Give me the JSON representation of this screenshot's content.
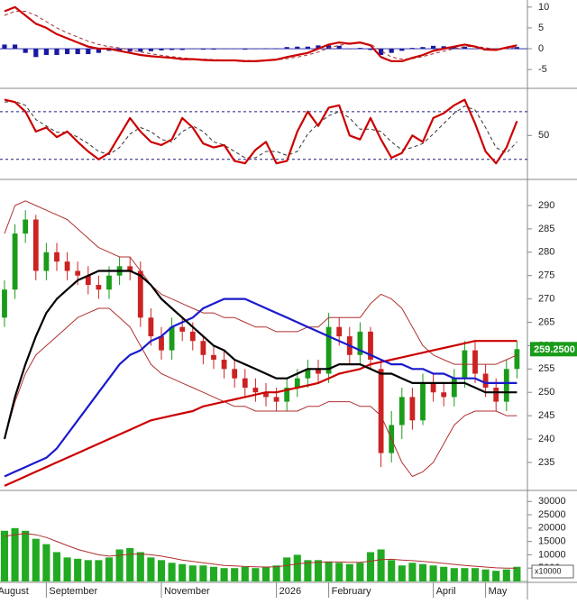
{
  "chart_data": [
    {
      "type": "line",
      "xlim": [
        -0.43,
        50
      ],
      "ylim": [
        -9.3,
        11.7
      ],
      "yticks": [
        10,
        5,
        0,
        -5
      ],
      "series": [
        {
          "style": "bar",
          "color": "#1a1aa0",
          "values": [
            1,
            1,
            -1,
            -2,
            -1.5,
            -1.5,
            -1.3,
            -1.3,
            -1.3,
            -1,
            -0.5,
            -0.7,
            -0.7,
            -0.7,
            -0.6,
            -0.4,
            -0.3,
            -0.3,
            -0.1,
            -0.2,
            -0.2,
            -0.1,
            0,
            -0.2,
            -0.1,
            0.1,
            0.1,
            0.4,
            0.5,
            0.5,
            0.8,
            0.8,
            0.7,
            0,
            0.2,
            -0.3,
            -1.5,
            -1,
            -0.5,
            0.2,
            0.4,
            0.7,
            0.6,
            0.5,
            0.5,
            -0.1,
            -0.4,
            -0.2,
            0.3,
            0.4
          ]
        },
        {
          "style": "dashed",
          "color": "#a03030",
          "values": [
            8,
            9,
            9,
            8,
            6.5,
            5,
            3.8,
            2.8,
            1.8,
            1,
            0.5,
            0.2,
            -0.3,
            -0.8,
            -1.2,
            -1.6,
            -1.9,
            -2.2,
            -2.4,
            -2.5,
            -2.6,
            -2.7,
            -2.8,
            -2.8,
            -2.9,
            -2.9,
            -2.7,
            -2.4,
            -2,
            -1.5,
            -0.8,
            0.2,
            0.8,
            1.2,
            1.3,
            1.1,
            -0.5,
            -2,
            -2.5,
            -2.4,
            -1.9,
            -1.2,
            -0.6,
            0,
            0.5,
            0.6,
            0.2,
            -0.1,
            0,
            0.4
          ]
        },
        {
          "style": "thick",
          "color": "#cc0000",
          "values": [
            9,
            10,
            8,
            6,
            5,
            3.5,
            2.5,
            1.5,
            0.5,
            0,
            0,
            -0.5,
            -1,
            -1.5,
            -1.8,
            -2,
            -2.2,
            -2.5,
            -2.5,
            -2.7,
            -2.8,
            -2.8,
            -2.8,
            -3,
            -3,
            -2.8,
            -2.6,
            -2,
            -1.5,
            -1,
            0,
            1,
            1.5,
            1.2,
            1.5,
            0.8,
            -2,
            -3,
            -3,
            -2.2,
            -1.5,
            -0.5,
            0,
            0.5,
            1,
            0.5,
            -0.2,
            -0.3,
            0.3,
            0.8
          ]
        }
      ]
    },
    {
      "type": "line",
      "xlim": [
        -0.43,
        50
      ],
      "ylim": [
        -4,
        107
      ],
      "yticks": [
        50
      ],
      "levels": [
        80,
        20
      ],
      "series": [
        {
          "style": "dashed",
          "color": "#333333",
          "values": [
            92,
            93,
            88,
            70,
            62,
            54,
            54,
            48,
            40,
            30,
            26,
            35,
            52,
            60,
            55,
            45,
            42,
            55,
            62,
            55,
            42,
            38,
            30,
            22,
            22,
            30,
            30,
            25,
            30,
            52,
            65,
            75,
            80,
            72,
            58,
            58,
            55,
            42,
            32,
            35,
            40,
            52,
            65,
            78,
            87,
            82,
            60,
            35,
            28,
            42
          ]
        },
        {
          "style": "thick",
          "color": "#cc0000",
          "values": [
            95,
            92,
            80,
            55,
            60,
            48,
            55,
            42,
            30,
            20,
            28,
            50,
            72,
            55,
            42,
            38,
            45,
            72,
            60,
            40,
            35,
            38,
            18,
            15,
            32,
            42,
            15,
            18,
            55,
            80,
            62,
            85,
            88,
            50,
            45,
            72,
            45,
            22,
            28,
            50,
            42,
            72,
            78,
            88,
            95,
            65,
            30,
            15,
            35,
            68
          ]
        }
      ]
    },
    {
      "type": "candlestick",
      "xlim": [
        -0.43,
        50
      ],
      "ylim": [
        229.2,
        295.4
      ],
      "yticks": [
        235,
        240,
        245,
        250,
        255,
        260,
        265,
        270,
        275,
        280,
        285,
        290
      ],
      "up_color": "#1a9c1a",
      "down_color": "#cc2222",
      "open": [
        266,
        272,
        284,
        287,
        276,
        280,
        278,
        276,
        275,
        273,
        272,
        275,
        277,
        276,
        266,
        262,
        259,
        264,
        263,
        261,
        258,
        257,
        255,
        253,
        251,
        250,
        249,
        248,
        251,
        253,
        255,
        254,
        264,
        262,
        258,
        263,
        255,
        237,
        243,
        249,
        244,
        252,
        250,
        249,
        253,
        259,
        254,
        251,
        248,
        255
      ],
      "high": [
        274,
        286,
        289,
        288,
        282,
        282,
        280,
        278,
        277,
        275,
        277,
        279,
        279,
        278,
        268,
        264,
        266,
        266,
        265,
        262,
        260,
        259,
        257,
        255,
        253,
        252,
        251,
        253,
        255,
        257,
        257,
        267,
        266,
        264,
        265,
        264,
        257,
        246,
        251,
        251,
        254,
        254,
        252,
        255,
        261,
        261,
        256,
        253,
        257,
        261
      ],
      "low": [
        264,
        270,
        282,
        274,
        274,
        276,
        274,
        273,
        271,
        270,
        270,
        273,
        274,
        264,
        260,
        257,
        257,
        261,
        259,
        256,
        255,
        253,
        251,
        249,
        248,
        247,
        246,
        246,
        249,
        251,
        252,
        252,
        260,
        256,
        256,
        255,
        234,
        235,
        240,
        242,
        243,
        248,
        247,
        247,
        251,
        252,
        249,
        246,
        246,
        253
      ],
      "close": [
        272,
        284,
        287,
        276,
        280,
        278,
        276,
        275,
        273,
        272,
        275,
        277,
        276,
        266,
        262,
        259,
        264,
        263,
        261,
        258,
        257,
        255,
        253,
        251,
        250,
        249,
        248,
        251,
        253,
        255,
        254,
        264,
        262,
        258,
        263,
        257,
        237,
        243,
        249,
        244,
        252,
        250,
        249,
        253,
        259,
        254,
        251,
        248,
        255,
        259.25
      ],
      "last_price": {
        "value": 259.25,
        "label": "259.2500"
      },
      "last_color": "#1a9c1a",
      "series": [
        {
          "style": "thin",
          "color": "#b03030",
          "values": [
            284,
            290,
            291,
            290,
            289,
            288,
            287,
            285,
            283,
            281,
            280,
            279,
            279,
            276,
            273,
            271,
            270,
            269,
            268,
            267,
            267,
            266,
            266,
            265,
            264,
            264,
            263,
            263,
            263,
            264,
            264,
            266,
            266,
            266,
            266,
            269,
            271,
            270,
            268,
            264,
            260,
            258,
            257,
            256,
            256,
            256,
            256,
            256,
            257,
            258
          ]
        },
        {
          "style": "thin",
          "color": "#b03030",
          "values": [
            240,
            248,
            254,
            258,
            260,
            262,
            264,
            266,
            267,
            268,
            268,
            266,
            264,
            260,
            256,
            254,
            253,
            252,
            251,
            250,
            249,
            248,
            247,
            247,
            246,
            246,
            246,
            246,
            246,
            247,
            247,
            248,
            248,
            248,
            247,
            247,
            245,
            240,
            235,
            232,
            233,
            235,
            239,
            243,
            245,
            246,
            246,
            246,
            245,
            245
          ]
        },
        {
          "style": "thick",
          "color": "#cc0000",
          "values": [
            230,
            231,
            232,
            233,
            234,
            235,
            236,
            237,
            238,
            239,
            240,
            241,
            242,
            243,
            244,
            244.5,
            245,
            245.5,
            246,
            247,
            247.5,
            248,
            248.5,
            249,
            249.5,
            250,
            250,
            250.5,
            251,
            251.5,
            252,
            253,
            254,
            254.5,
            255,
            256,
            256.5,
            257,
            257.5,
            258,
            258.5,
            259,
            259.5,
            260,
            260.5,
            261,
            261,
            261,
            261,
            261
          ]
        },
        {
          "style": "thick",
          "color": "#1a1acc",
          "values": [
            232,
            233,
            234,
            235,
            236,
            238,
            241,
            244,
            247,
            250,
            253,
            256,
            258,
            259,
            261,
            262,
            264,
            265,
            266,
            268,
            269,
            270,
            270,
            270,
            269,
            268,
            267,
            266,
            265,
            264,
            263,
            262,
            261,
            260,
            259,
            258,
            257,
            256,
            256,
            255,
            255,
            254,
            254,
            253,
            253,
            253,
            252,
            252,
            252,
            252
          ]
        },
        {
          "style": "thick",
          "color": "#000000",
          "values": [
            240,
            249,
            256,
            262,
            267,
            270,
            272,
            274,
            275,
            276,
            276,
            276,
            276,
            275,
            273,
            270,
            268,
            266,
            264,
            262,
            260,
            259,
            257,
            256,
            255,
            254,
            253,
            253,
            254,
            255,
            255,
            255,
            256,
            256,
            256,
            255,
            254,
            254,
            253,
            252,
            252,
            252,
            252,
            252,
            252,
            251,
            250,
            250,
            250,
            250
          ]
        }
      ]
    },
    {
      "type": "bar",
      "xlim": [
        -0.43,
        50
      ],
      "ylim": [
        0,
        33800
      ],
      "yticks": [
        5000,
        10000,
        15000,
        20000,
        25000,
        30000
      ],
      "unit_label": "x10000",
      "xticks": [
        {
          "value": -0.9,
          "label": "August"
        },
        {
          "value": 4,
          "label": "September"
        },
        {
          "value": 15,
          "label": "November"
        },
        {
          "value": 26,
          "label": "2026"
        },
        {
          "value": 31,
          "label": "February"
        },
        {
          "value": 41,
          "label": "April"
        },
        {
          "value": 46,
          "label": "May"
        }
      ],
      "series": [
        {
          "style": "bar",
          "color": "#22aa22",
          "values": [
            19000,
            20000,
            19000,
            16000,
            14000,
            11000,
            9000,
            8500,
            8000,
            8000,
            9000,
            12000,
            12500,
            11000,
            9000,
            8000,
            7000,
            6500,
            6000,
            6000,
            5500,
            5000,
            5000,
            5500,
            5000,
            5500,
            6000,
            9000,
            10000,
            8000,
            8000,
            7500,
            7000,
            6500,
            7000,
            11000,
            12000,
            8000,
            6000,
            7000,
            6500,
            6000,
            5500,
            5000,
            5000,
            5000,
            4500,
            4000,
            4500,
            5500
          ]
        },
        {
          "style": "thin",
          "color": "#b03030",
          "values": [
            17000,
            17500,
            18000,
            17500,
            16500,
            15000,
            13500,
            12000,
            11000,
            10000,
            9500,
            9800,
            10200,
            10300,
            10000,
            9500,
            8800,
            8000,
            7500,
            7000,
            6500,
            6000,
            5800,
            5600,
            5500,
            5400,
            5500,
            6000,
            6600,
            7000,
            7200,
            7300,
            7300,
            7200,
            7200,
            7600,
            8200,
            8300,
            8000,
            7800,
            7500,
            7200,
            6800,
            6400,
            6000,
            5700,
            5400,
            5100,
            5000,
            5000
          ]
        }
      ]
    }
  ]
}
